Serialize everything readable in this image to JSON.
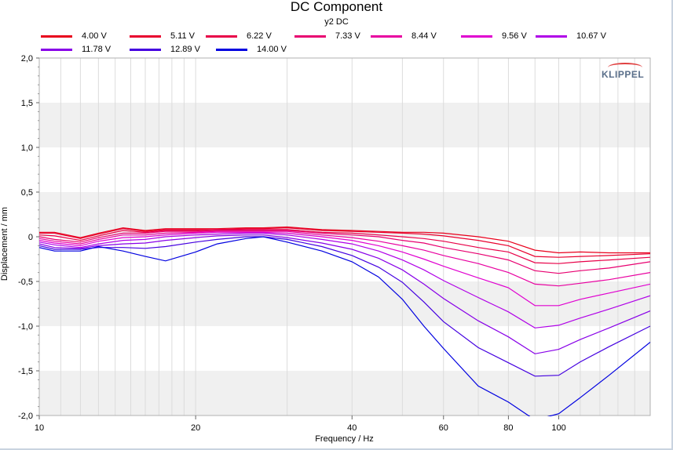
{
  "chart_data": {
    "type": "line",
    "title": "DC Component",
    "subtitle": "y2 DC",
    "xlabel": "Frequency / Hz",
    "ylabel": "Displacement / mm",
    "x_scale": "log",
    "xlim": [
      10,
      150
    ],
    "ylim": [
      -2.0,
      2.0
    ],
    "xticks": [
      "10",
      "20",
      "40",
      "60",
      "80",
      "100"
    ],
    "yticks": [
      "2,0",
      "1,5",
      "1,0",
      "0,5",
      "0",
      "-0,5",
      "-1,0",
      "-1,5",
      "-2,0"
    ],
    "logo": "KLIPPEL",
    "x": [
      10,
      10.7,
      12,
      13,
      14.5,
      16,
      17.5,
      20,
      22,
      25,
      27,
      30,
      35,
      40,
      45,
      50,
      55,
      60,
      70,
      80,
      90,
      100,
      110,
      125,
      150
    ],
    "series": [
      {
        "name": "4.00 V",
        "color": "#e8001c",
        "values": [
          0.05,
          0.05,
          -0.01,
          0.04,
          0.1,
          0.07,
          0.09,
          0.09,
          0.09,
          0.1,
          0.1,
          0.11,
          0.08,
          0.07,
          0.06,
          0.05,
          0.05,
          0.04,
          0.0,
          -0.05,
          -0.15,
          -0.18,
          -0.17,
          -0.18,
          -0.18
        ]
      },
      {
        "name": "5.11 V",
        "color": "#e8002e",
        "values": [
          0.04,
          0.04,
          -0.02,
          0.03,
          0.09,
          0.06,
          0.08,
          0.08,
          0.08,
          0.09,
          0.09,
          0.1,
          0.07,
          0.06,
          0.05,
          0.04,
          0.03,
          0.01,
          -0.04,
          -0.1,
          -0.22,
          -0.23,
          -0.22,
          -0.21,
          -0.19
        ]
      },
      {
        "name": "6.22 V",
        "color": "#e80048",
        "values": [
          0.02,
          0.01,
          -0.04,
          0.01,
          0.07,
          0.05,
          0.07,
          0.07,
          0.08,
          0.08,
          0.08,
          0.08,
          0.05,
          0.04,
          0.02,
          0.0,
          -0.02,
          -0.05,
          -0.12,
          -0.17,
          -0.29,
          -0.3,
          -0.28,
          -0.26,
          -0.23
        ]
      },
      {
        "name": "7.33 V",
        "color": "#e80070",
        "values": [
          0.0,
          -0.03,
          -0.06,
          -0.01,
          0.04,
          0.04,
          0.06,
          0.06,
          0.07,
          0.07,
          0.07,
          0.07,
          0.04,
          0.02,
          0.0,
          -0.04,
          -0.07,
          -0.12,
          -0.19,
          -0.26,
          -0.38,
          -0.41,
          -0.38,
          -0.35,
          -0.28
        ]
      },
      {
        "name": "8.44 V",
        "color": "#e800a0",
        "values": [
          -0.02,
          -0.05,
          -0.08,
          -0.03,
          0.02,
          0.02,
          0.04,
          0.05,
          0.06,
          0.06,
          0.06,
          0.06,
          0.02,
          -0.01,
          -0.05,
          -0.1,
          -0.15,
          -0.21,
          -0.3,
          -0.4,
          -0.53,
          -0.55,
          -0.52,
          -0.48,
          -0.4
        ]
      },
      {
        "name": "9.56 V",
        "color": "#e000d0",
        "values": [
          -0.04,
          -0.07,
          -0.1,
          -0.05,
          -0.01,
          0.0,
          0.02,
          0.04,
          0.05,
          0.05,
          0.05,
          0.04,
          0.0,
          -0.04,
          -0.1,
          -0.17,
          -0.25,
          -0.33,
          -0.46,
          -0.57,
          -0.77,
          -0.77,
          -0.7,
          -0.63,
          -0.53
        ]
      },
      {
        "name": "10.67 V",
        "color": "#b000e8",
        "values": [
          -0.06,
          -0.09,
          -0.12,
          -0.08,
          -0.04,
          -0.03,
          0.0,
          0.02,
          0.03,
          0.04,
          0.04,
          0.02,
          -0.03,
          -0.08,
          -0.16,
          -0.26,
          -0.37,
          -0.49,
          -0.68,
          -0.84,
          -1.02,
          -0.99,
          -0.91,
          -0.81,
          -0.66
        ]
      },
      {
        "name": "11.78 V",
        "color": "#8800e8",
        "values": [
          -0.08,
          -0.12,
          -0.13,
          -0.1,
          -0.08,
          -0.07,
          -0.04,
          -0.01,
          0.01,
          0.02,
          0.02,
          -0.01,
          -0.07,
          -0.14,
          -0.24,
          -0.37,
          -0.53,
          -0.69,
          -0.94,
          -1.12,
          -1.31,
          -1.26,
          -1.15,
          -1.02,
          -0.83
        ]
      },
      {
        "name": "12.89 V",
        "color": "#4400e0",
        "values": [
          -0.1,
          -0.14,
          -0.14,
          -0.12,
          -0.12,
          -0.13,
          -0.11,
          -0.06,
          -0.03,
          0.0,
          0.0,
          -0.03,
          -0.11,
          -0.21,
          -0.34,
          -0.51,
          -0.73,
          -0.95,
          -1.24,
          -1.41,
          -1.56,
          -1.55,
          -1.4,
          -1.23,
          -1.0
        ]
      },
      {
        "name": "14.00 V",
        "color": "#0000e0",
        "values": [
          -0.12,
          -0.16,
          -0.16,
          -0.11,
          -0.16,
          -0.22,
          -0.27,
          -0.17,
          -0.08,
          -0.02,
          0.0,
          -0.06,
          -0.16,
          -0.28,
          -0.45,
          -0.7,
          -1.0,
          -1.25,
          -1.67,
          -1.85,
          -2.05,
          -1.98,
          -1.8,
          -1.55,
          -1.18
        ]
      }
    ]
  }
}
